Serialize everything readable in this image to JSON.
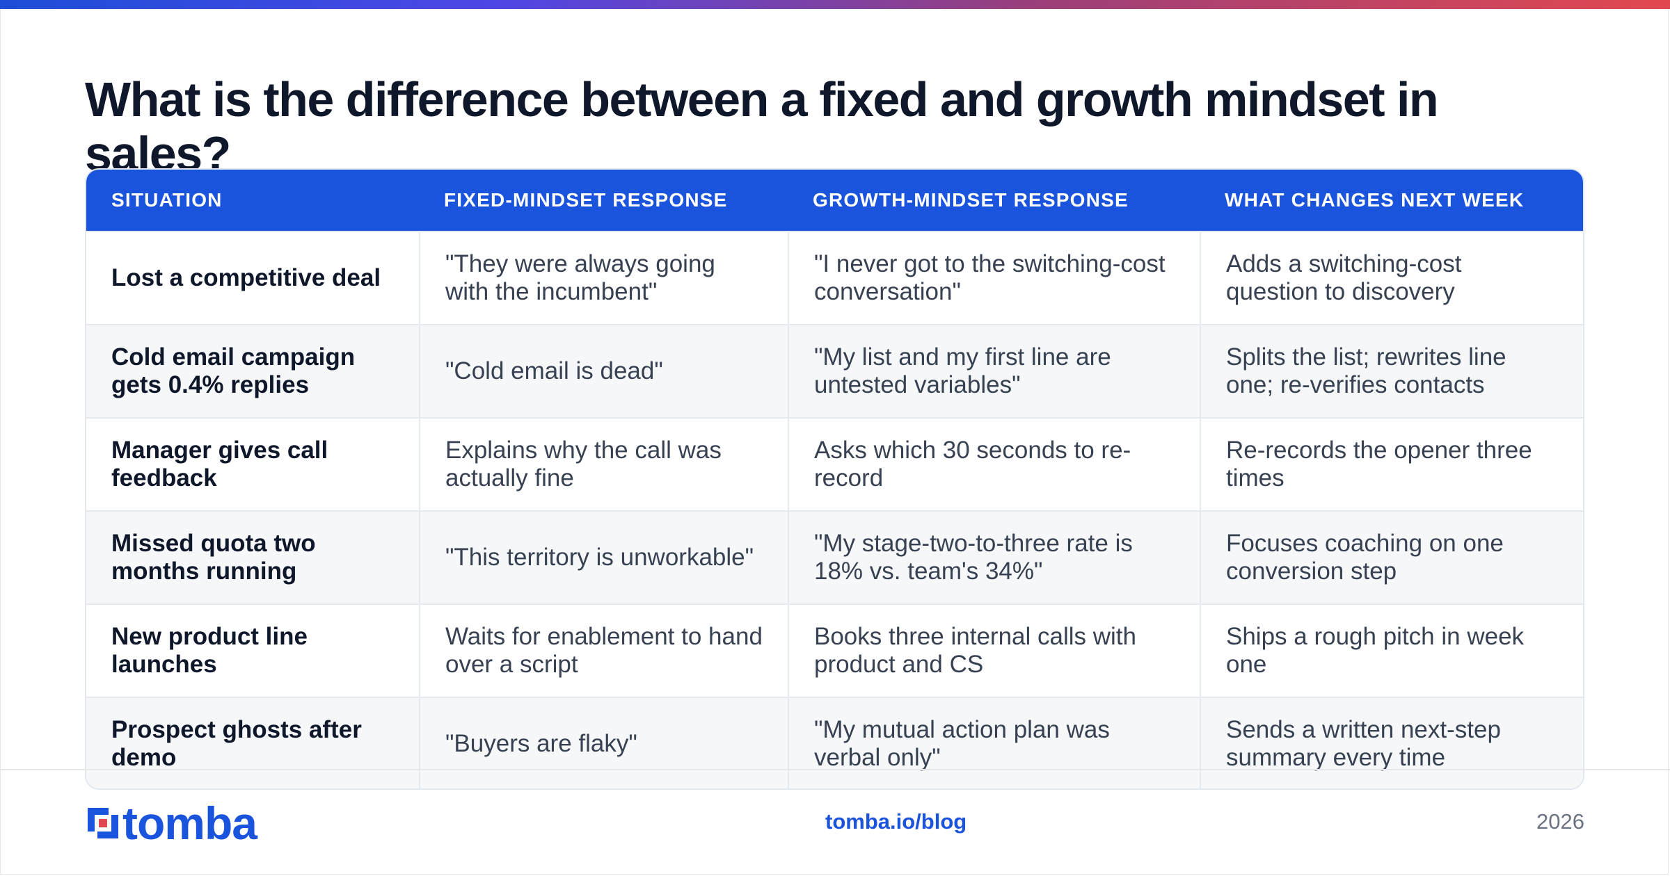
{
  "title": "What is the difference between a fixed and growth mindset in sales?",
  "table": {
    "headers": [
      "SITUATION",
      "FIXED-MINDSET RESPONSE",
      "GROWTH-MINDSET RESPONSE",
      "WHAT CHANGES NEXT WEEK"
    ],
    "rows": [
      [
        "Lost a competitive deal",
        "\"They were always going with the incumbent\"",
        "\"I never got to the switching-cost conversation\"",
        "Adds a switching-cost question to discovery"
      ],
      [
        "Cold email campaign gets 0.4% replies",
        "\"Cold email is dead\"",
        "\"My list and my first line are untested variables\"",
        "Splits the list; rewrites line one; re-verifies contacts"
      ],
      [
        "Manager gives call feedback",
        "Explains why the call was actually fine",
        "Asks which 30 seconds to re-record",
        "Re-records the opener three times"
      ],
      [
        "Missed quota two months running",
        "\"This territory is unworkable\"",
        "\"My stage-two-to-three rate is 18% vs. team's 34%\"",
        "Focuses coaching on one conversion step"
      ],
      [
        "New product line launches",
        "Waits for enablement to hand over a script",
        "Books three internal calls with product and CS",
        "Ships a rough pitch in week one"
      ],
      [
        "Prospect ghosts after demo",
        "\"Buyers are flaky\"",
        "\"My mutual action plan was verbal only\"",
        "Sends a written next-step summary every time"
      ]
    ]
  },
  "footer": {
    "logo_text": "tomba",
    "link": "tomba.io/blog",
    "year": "2026"
  },
  "colors": {
    "brand": "#1a53dc",
    "gradient_start": "#1d4ed8",
    "gradient_end": "#e2484f"
  },
  "icons": {
    "logo": "tomba-logo-icon"
  }
}
